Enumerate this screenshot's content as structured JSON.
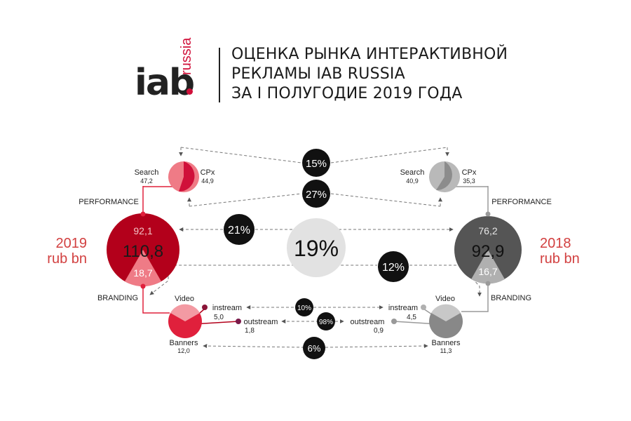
{
  "header": {
    "logo_main": "iab",
    "logo_sub": "russia",
    "title_lines": [
      "ОЦЕНКА РЫНКА ИНТЕРАКТИВНОЙ",
      "РЕКЛАМЫ IAB RUSSIA",
      "ЗА I ПОЛУГОДИЕ 2019 ГОДА"
    ]
  },
  "colors": {
    "red_dark": "#b3001b",
    "red": "#e0203c",
    "red_light": "#ef7b86",
    "grey_dark": "#555555",
    "grey": "#8f8f8f",
    "grey_light": "#c3c3c3",
    "growth": "#111111"
  },
  "year_2019": {
    "year": "2019",
    "unit": "rub bn",
    "total": "110,8",
    "performance": "92,1",
    "branding": "18,7",
    "search_label": "Search",
    "search_value": "47,2",
    "cpx_label": "CPx",
    "cpx_value": "44,9",
    "performance_label": "PERFORMANCE",
    "branding_label": "BRANDING",
    "video_label": "Video",
    "banners_label": "Banners",
    "banners_value": "12,0",
    "instream_label": "instream",
    "instream_value": "5,0",
    "outstream_label": "outstream",
    "outstream_value": "1,8"
  },
  "year_2018": {
    "year": "2018",
    "unit": "rub bn",
    "total": "92,9",
    "performance": "76,2",
    "branding": "16,7",
    "search_label": "Search",
    "search_value": "40,9",
    "cpx_label": "CPx",
    "cpx_value": "35,3",
    "performance_label": "PERFORMANCE",
    "branding_label": "BRANDING",
    "video_label": "Video",
    "banners_label": "Banners",
    "banners_value": "11,3",
    "instream_label": "instream",
    "instream_value": "4,5",
    "outstream_label": "outstream",
    "outstream_value": "0,9"
  },
  "growth": {
    "search": "15%",
    "cpx": "27%",
    "performance": "21%",
    "total": "19%",
    "branding": "12%",
    "instream": "10%",
    "outstream": "98%",
    "banners": "6%"
  }
}
